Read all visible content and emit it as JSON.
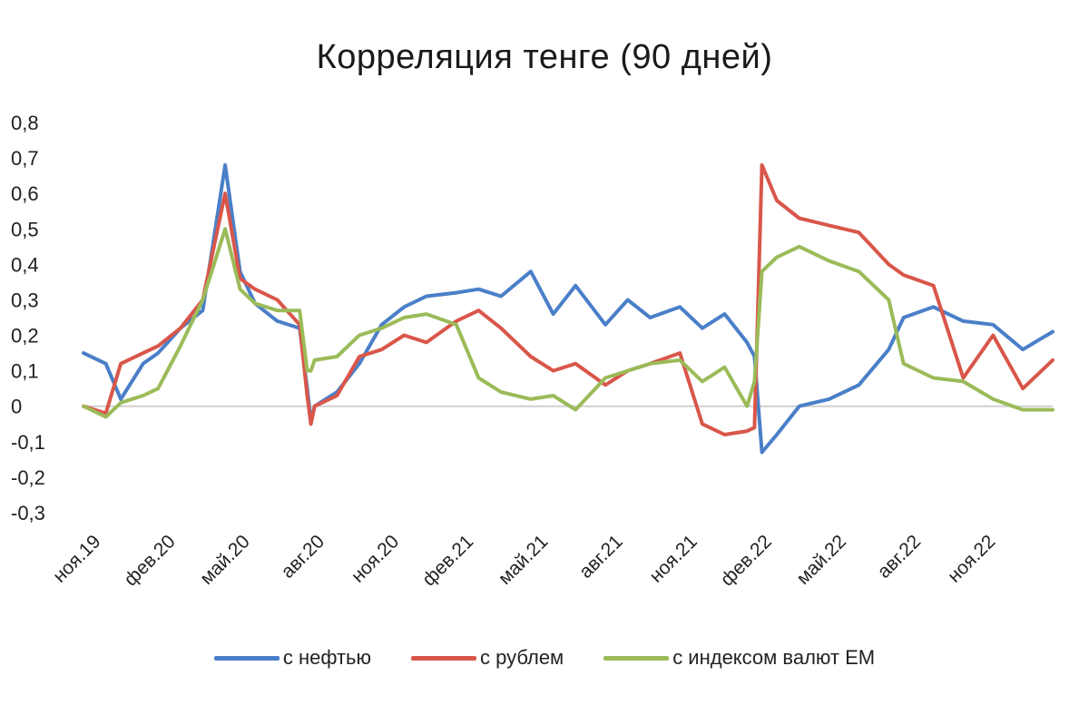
{
  "chart_data": {
    "type": "line",
    "title": "Корреляция тенге (90 дней)",
    "xlabel": "",
    "ylabel": "",
    "ylim": [
      -0.3,
      0.8
    ],
    "yticks": [
      "-0,3",
      "-0,2",
      "-0,1",
      "0",
      "0,1",
      "0,2",
      "0,3",
      "0,4",
      "0,5",
      "0,6",
      "0,7",
      "0,8"
    ],
    "ytick_values": [
      -0.3,
      -0.2,
      -0.1,
      0,
      0.1,
      0.2,
      0.3,
      0.4,
      0.5,
      0.6,
      0.7,
      0.8
    ],
    "xticks": [
      "ноя.19",
      "фев.20",
      "май.20",
      "авг.20",
      "ноя.20",
      "фев.21",
      "май.21",
      "авг.21",
      "ноя.21",
      "фев.22",
      "май.22",
      "авг.22",
      "ноя.22"
    ],
    "grid": false,
    "legend_position": "bottom",
    "series": [
      {
        "name": "с нефтью",
        "color": "#4a7fc8",
        "x": [
          0,
          0.3,
          0.5,
          0.8,
          1.0,
          1.3,
          1.6,
          1.9,
          2.1,
          2.3,
          2.6,
          2.9,
          3.0,
          3.05,
          3.1,
          3.4,
          3.7,
          4.0,
          4.3,
          4.6,
          5.0,
          5.3,
          5.6,
          6.0,
          6.3,
          6.6,
          7.0,
          7.3,
          7.6,
          8.0,
          8.3,
          8.6,
          8.9,
          9.0,
          9.1,
          9.3,
          9.6,
          10.0,
          10.4,
          10.8,
          11.0,
          11.4,
          11.8,
          12.2,
          12.6,
          13.0
        ],
        "y": [
          0.15,
          0.12,
          0.02,
          0.12,
          0.15,
          0.22,
          0.27,
          0.68,
          0.38,
          0.29,
          0.24,
          0.22,
          0.05,
          -0.04,
          0.0,
          0.04,
          0.12,
          0.23,
          0.28,
          0.31,
          0.32,
          0.33,
          0.31,
          0.38,
          0.26,
          0.34,
          0.23,
          0.3,
          0.25,
          0.28,
          0.22,
          0.26,
          0.18,
          0.14,
          -0.13,
          -0.08,
          0.0,
          0.02,
          0.06,
          0.16,
          0.25,
          0.28,
          0.24,
          0.23,
          0.16,
          0.21
        ]
      },
      {
        "name": "с рублем",
        "color": "#d9564a",
        "x": [
          0,
          0.3,
          0.5,
          0.8,
          1.0,
          1.3,
          1.6,
          1.9,
          2.1,
          2.3,
          2.6,
          2.9,
          3.0,
          3.05,
          3.1,
          3.4,
          3.7,
          4.0,
          4.3,
          4.6,
          5.0,
          5.3,
          5.6,
          6.0,
          6.3,
          6.6,
          7.0,
          7.3,
          7.6,
          8.0,
          8.3,
          8.6,
          8.9,
          9.0,
          9.1,
          9.3,
          9.6,
          10.0,
          10.4,
          10.8,
          11.0,
          11.4,
          11.8,
          12.2,
          12.6,
          13.0
        ],
        "y": [
          0.0,
          -0.02,
          0.12,
          0.15,
          0.17,
          0.22,
          0.3,
          0.6,
          0.36,
          0.33,
          0.3,
          0.23,
          0.03,
          -0.05,
          0.0,
          0.03,
          0.14,
          0.16,
          0.2,
          0.18,
          0.24,
          0.27,
          0.22,
          0.14,
          0.1,
          0.12,
          0.06,
          0.1,
          0.12,
          0.15,
          -0.05,
          -0.08,
          -0.07,
          -0.06,
          0.68,
          0.58,
          0.53,
          0.51,
          0.49,
          0.4,
          0.37,
          0.34,
          0.08,
          0.2,
          0.05,
          0.13
        ]
      },
      {
        "name": "с индексом валют ЕМ",
        "color": "#9bbb59",
        "x": [
          0,
          0.3,
          0.5,
          0.8,
          1.0,
          1.3,
          1.6,
          1.9,
          2.1,
          2.3,
          2.6,
          2.9,
          3.0,
          3.05,
          3.1,
          3.4,
          3.7,
          4.0,
          4.3,
          4.6,
          5.0,
          5.3,
          5.6,
          6.0,
          6.3,
          6.6,
          7.0,
          7.3,
          7.6,
          8.0,
          8.3,
          8.6,
          8.9,
          9.0,
          9.1,
          9.3,
          9.6,
          10.0,
          10.4,
          10.8,
          11.0,
          11.4,
          11.8,
          12.2,
          12.6,
          13.0
        ],
        "y": [
          0.0,
          -0.03,
          0.01,
          0.03,
          0.05,
          0.17,
          0.3,
          0.5,
          0.33,
          0.29,
          0.27,
          0.27,
          0.1,
          0.1,
          0.13,
          0.14,
          0.2,
          0.22,
          0.25,
          0.26,
          0.23,
          0.08,
          0.04,
          0.02,
          0.03,
          -0.01,
          0.08,
          0.1,
          0.12,
          0.13,
          0.07,
          0.11,
          0.0,
          0.07,
          0.38,
          0.42,
          0.45,
          0.41,
          0.38,
          0.3,
          0.12,
          0.08,
          0.07,
          0.02,
          -0.01,
          -0.01
        ]
      }
    ]
  }
}
